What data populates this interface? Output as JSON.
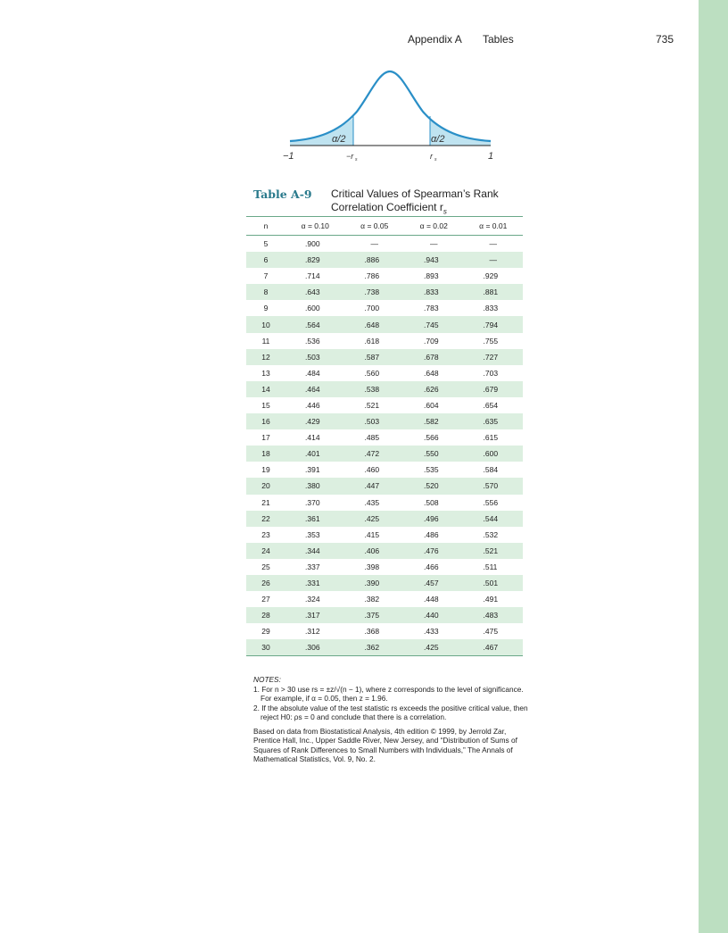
{
  "header": {
    "section": "Appendix A",
    "tab": "Tables",
    "page_number": "735"
  },
  "figure": {
    "alpha_half_left": "α/2",
    "alpha_half_right": "α/2",
    "label_neg_one": "−1",
    "label_neg_rs": "−r",
    "label_pos_rs": "r",
    "label_pos_one": "1",
    "subscript_s": "s"
  },
  "table": {
    "label": "Table A-9",
    "title_line1": "Critical Values of Spearman’s Rank",
    "title_line2": "Correlation Coefficient r",
    "title_sub": "s",
    "columns": [
      "n",
      "α = 0.10",
      "α = 0.05",
      "α = 0.02",
      "α = 0.01"
    ],
    "rows": [
      [
        "5",
        ".900",
        "—",
        "—",
        "—"
      ],
      [
        "6",
        ".829",
        ".886",
        ".943",
        "—"
      ],
      [
        "7",
        ".714",
        ".786",
        ".893",
        ".929"
      ],
      [
        "8",
        ".643",
        ".738",
        ".833",
        ".881"
      ],
      [
        "9",
        ".600",
        ".700",
        ".783",
        ".833"
      ],
      [
        "10",
        ".564",
        ".648",
        ".745",
        ".794"
      ],
      [
        "11",
        ".536",
        ".618",
        ".709",
        ".755"
      ],
      [
        "12",
        ".503",
        ".587",
        ".678",
        ".727"
      ],
      [
        "13",
        ".484",
        ".560",
        ".648",
        ".703"
      ],
      [
        "14",
        ".464",
        ".538",
        ".626",
        ".679"
      ],
      [
        "15",
        ".446",
        ".521",
        ".604",
        ".654"
      ],
      [
        "16",
        ".429",
        ".503",
        ".582",
        ".635"
      ],
      [
        "17",
        ".414",
        ".485",
        ".566",
        ".615"
      ],
      [
        "18",
        ".401",
        ".472",
        ".550",
        ".600"
      ],
      [
        "19",
        ".391",
        ".460",
        ".535",
        ".584"
      ],
      [
        "20",
        ".380",
        ".447",
        ".520",
        ".570"
      ],
      [
        "21",
        ".370",
        ".435",
        ".508",
        ".556"
      ],
      [
        "22",
        ".361",
        ".425",
        ".496",
        ".544"
      ],
      [
        "23",
        ".353",
        ".415",
        ".486",
        ".532"
      ],
      [
        "24",
        ".344",
        ".406",
        ".476",
        ".521"
      ],
      [
        "25",
        ".337",
        ".398",
        ".466",
        ".511"
      ],
      [
        "26",
        ".331",
        ".390",
        ".457",
        ".501"
      ],
      [
        "27",
        ".324",
        ".382",
        ".448",
        ".491"
      ],
      [
        "28",
        ".317",
        ".375",
        ".440",
        ".483"
      ],
      [
        "29",
        ".312",
        ".368",
        ".433",
        ".475"
      ],
      [
        "30",
        ".306",
        ".362",
        ".425",
        ".467"
      ]
    ]
  },
  "notes": {
    "heading": "NOTES:",
    "note1": "1. For n > 30 use rs = ±z/√(n − 1), where z corresponds to the level of significance. For example, if α = 0.05, then z = 1.96.",
    "note2": "2. If the absolute value of the test statistic rs exceeds the positive critical value, then reject H0: ρs = 0 and conclude that there is a correlation.",
    "source": "Based on data from Biostatistical Analysis, 4th edition © 1999, by Jerrold Zar, Prentice Hall, Inc., Upper Saddle River, New Jersey, and “Distribution of Sums of Squares of Rank Differences to Small Numbers with Individuals,” The Annals of Mathematical Statistics, Vol. 9, No. 2."
  },
  "colors": {
    "accent": "#2a7a8c",
    "curve": "#2a8fc7",
    "tail_fill": "#bfe3f0",
    "stripe": "#dcefe0",
    "sidebar": "#bcdfc1"
  }
}
